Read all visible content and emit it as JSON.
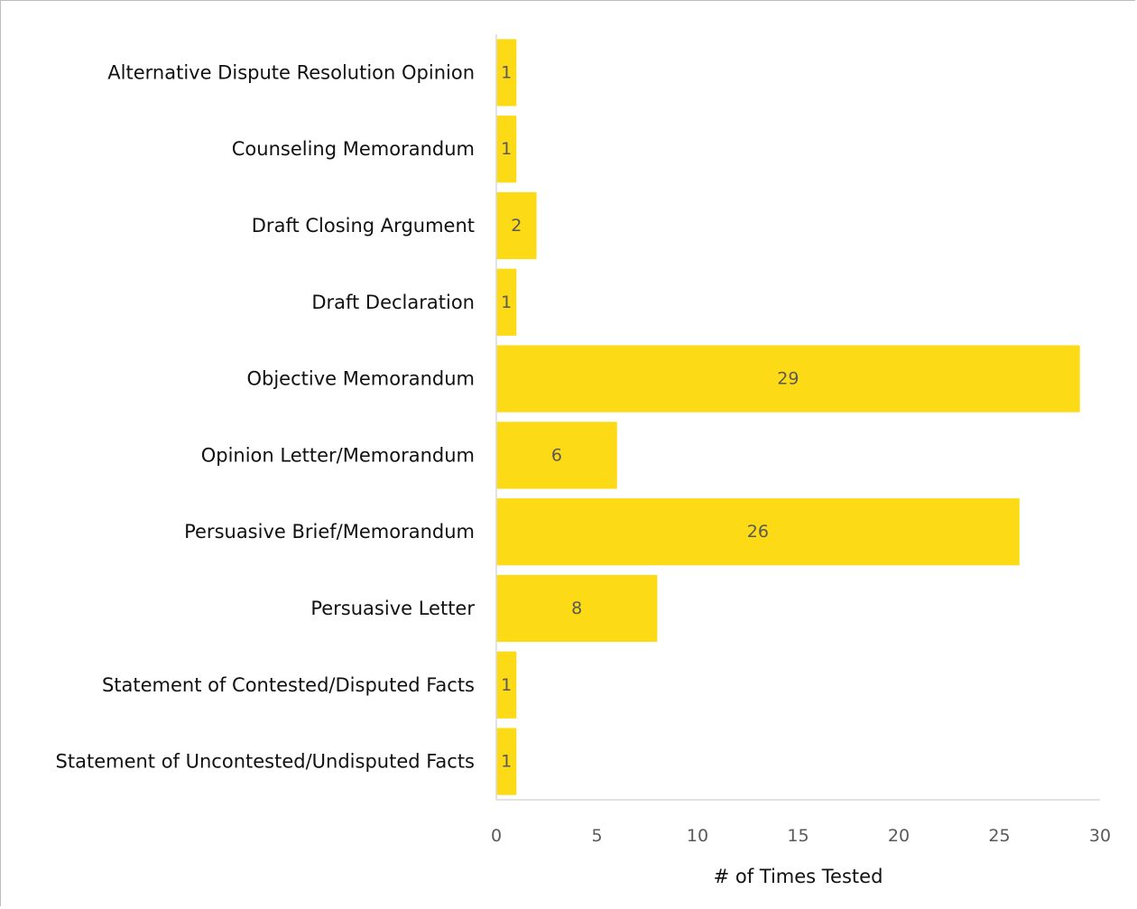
{
  "chart_data": {
    "type": "bar",
    "orientation": "horizontal",
    "categories": [
      "Alternative Dispute Resolution Opinion",
      "Counseling Memorandum",
      "Draft Closing Argument",
      "Draft Declaration",
      "Objective Memorandum",
      "Opinion Letter/Memorandum",
      "Persuasive Brief/Memorandum",
      "Persuasive Letter",
      "Statement of Contested/Disputed Facts",
      "Statement of Uncontested/Undisputed Facts"
    ],
    "values": [
      1,
      1,
      2,
      1,
      29,
      6,
      26,
      8,
      1,
      1
    ],
    "xlabel": "# of Times Tested",
    "ylabel": "",
    "title": "",
    "xlim": [
      0,
      30
    ],
    "xticks": [
      "0",
      "5",
      "10",
      "15",
      "20",
      "25",
      "30"
    ],
    "bar_color": "#FDDA16",
    "grid": false,
    "legend": "none"
  }
}
